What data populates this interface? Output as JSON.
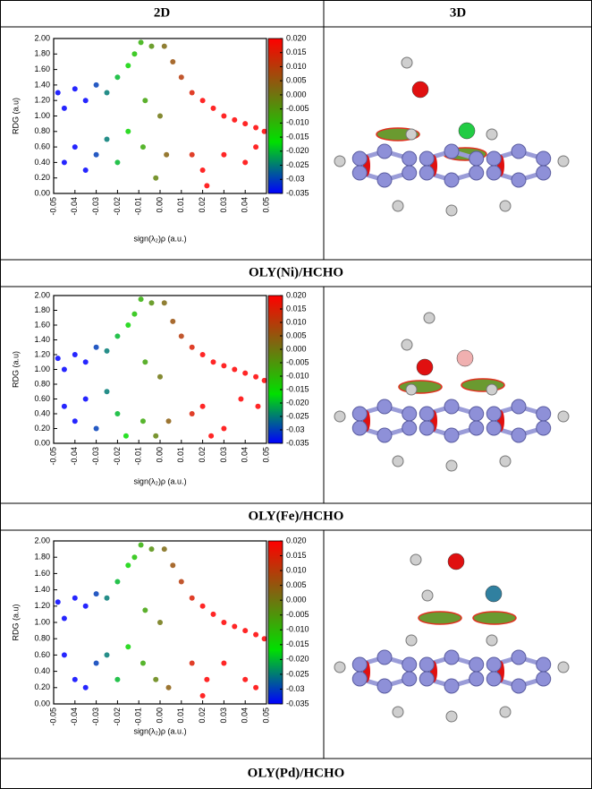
{
  "table": {
    "headers": [
      "2D",
      "3D"
    ],
    "captions": [
      "OLY(Ni)/HCHO",
      "OLY(Fe)/HCHO",
      "OLY(Pd)/HCHO"
    ]
  },
  "chart_data": [
    {
      "type": "scatter",
      "xlabel": "sign(λ₂)ρ (a.u.)",
      "ylabel": "RDG (a.u)",
      "xlim": [
        -0.05,
        0.05
      ],
      "ylim": [
        0,
        2
      ],
      "xticks": [
        -0.05,
        -0.04,
        -0.03,
        -0.02,
        -0.01,
        {
          "value": 0,
          "label": "0.00"
        },
        0.01,
        0.02,
        0.03,
        0.04,
        0.05
      ],
      "yticks": [
        {
          "value": 0,
          "label": "0.00"
        },
        {
          "value": 0.2,
          "label": "0.20"
        },
        {
          "value": 0.4,
          "label": "0.40"
        },
        {
          "value": 0.6,
          "label": "0.60"
        },
        {
          "value": 0.8,
          "label": "0.80"
        },
        {
          "value": 1,
          "label": "1.00"
        },
        {
          "value": 1.2,
          "label": "1.20"
        },
        {
          "value": 1.4,
          "label": "1.40"
        },
        {
          "value": 1.6,
          "label": "1.60"
        },
        {
          "value": 1.8,
          "label": "1.80"
        },
        {
          "value": 2,
          "label": "2.00"
        }
      ],
      "colorbar": {
        "lim": [
          -0.035,
          0.02
        ],
        "colors": [
          "#0000ff",
          "#00e000",
          "#7a6a10",
          "#ff0000"
        ],
        "ticks": [
          -0.035,
          -0.03,
          {
            "value": -0.025,
            "label": "-0.025"
          },
          {
            "value": -0.02,
            "label": "-0.020"
          },
          -0.015,
          {
            "value": -0.01,
            "label": "-0.010"
          },
          -0.005,
          {
            "value": 0,
            "label": "0.000"
          },
          0.005,
          {
            "value": 0.01,
            "label": "0.010"
          },
          0.015,
          {
            "value": 0.02,
            "label": "0.020"
          }
        ]
      },
      "series": [
        {
          "x": [
            -0.048,
            -0.045,
            -0.04,
            -0.035,
            -0.03,
            -0.025,
            -0.02,
            -0.015,
            -0.012,
            -0.009,
            -0.008,
            -0.007,
            -0.004,
            -0.002,
            0.0,
            0.002,
            0.003,
            0.006,
            0.01,
            0.015,
            0.02,
            0.025,
            0.03,
            0.035,
            0.04,
            0.045,
            0.049,
            -0.045,
            -0.04,
            -0.035,
            -0.03,
            -0.025,
            -0.02,
            -0.015,
            0.015,
            0.02,
            0.022,
            0.03,
            0.04,
            0.045
          ],
          "y": [
            1.3,
            1.1,
            1.35,
            1.2,
            1.4,
            1.3,
            1.5,
            1.65,
            1.8,
            1.95,
            0.6,
            1.2,
            1.9,
            0.2,
            1.0,
            1.9,
            0.5,
            1.7,
            1.5,
            1.3,
            1.2,
            1.1,
            1.0,
            0.95,
            0.9,
            0.85,
            0.8,
            0.4,
            0.6,
            0.3,
            0.5,
            0.7,
            0.4,
            0.8,
            0.5,
            0.3,
            0.1,
            0.5,
            0.4,
            0.6
          ]
        }
      ]
    },
    {
      "type": "scatter",
      "xlabel": "sign(λ₂)ρ (a.u.)",
      "ylabel": "RDG (a.u)",
      "xlim": [
        -0.05,
        0.05
      ],
      "ylim": [
        0,
        2
      ],
      "xticks": [
        -0.05,
        -0.04,
        -0.03,
        -0.02,
        -0.01,
        {
          "value": 0,
          "label": "0.00"
        },
        0.01,
        0.02,
        0.03,
        0.04,
        0.05
      ],
      "yticks": [
        {
          "value": 0,
          "label": "0.00"
        },
        {
          "value": 0.2,
          "label": "0.20"
        },
        {
          "value": 0.4,
          "label": "0.40"
        },
        {
          "value": 0.6,
          "label": "0.60"
        },
        {
          "value": 0.8,
          "label": "0.80"
        },
        {
          "value": 1,
          "label": "1.00"
        },
        {
          "value": 1.2,
          "label": "1.20"
        },
        {
          "value": 1.4,
          "label": "1.40"
        },
        {
          "value": 1.6,
          "label": "1.60"
        },
        {
          "value": 1.8,
          "label": "1.80"
        },
        {
          "value": 2,
          "label": "2.00"
        }
      ],
      "colorbar": {
        "lim": [
          -0.035,
          0.02
        ],
        "colors": [
          "#0000ff",
          "#00e000",
          "#7a6a10",
          "#ff0000"
        ],
        "ticks": [
          -0.035,
          -0.03,
          {
            "value": -0.025,
            "label": "-0.025"
          },
          {
            "value": -0.02,
            "label": "-0.020"
          },
          -0.015,
          {
            "value": -0.01,
            "label": "-0.010"
          },
          -0.005,
          {
            "value": 0,
            "label": "0.000"
          },
          0.005,
          {
            "value": 0.01,
            "label": "0.010"
          },
          0.015,
          {
            "value": 0.02,
            "label": "0.020"
          }
        ]
      },
      "series": [
        {
          "x": [
            -0.048,
            -0.045,
            -0.04,
            -0.035,
            -0.03,
            -0.025,
            -0.02,
            -0.015,
            -0.012,
            -0.009,
            -0.008,
            -0.007,
            -0.004,
            -0.002,
            0.0,
            0.002,
            0.004,
            0.006,
            0.01,
            0.015,
            0.02,
            0.025,
            0.03,
            0.035,
            0.04,
            0.045,
            0.049,
            -0.045,
            -0.04,
            -0.035,
            -0.03,
            -0.025,
            -0.02,
            -0.016,
            0.015,
            0.02,
            0.024,
            0.03,
            0.038,
            0.046
          ],
          "y": [
            1.15,
            1.0,
            1.2,
            1.1,
            1.3,
            1.25,
            1.45,
            1.6,
            1.75,
            1.95,
            0.3,
            1.1,
            1.9,
            0.1,
            0.9,
            1.9,
            0.3,
            1.65,
            1.45,
            1.3,
            1.2,
            1.1,
            1.05,
            1.0,
            0.95,
            0.9,
            0.85,
            0.5,
            0.3,
            0.6,
            0.2,
            0.7,
            0.4,
            0.1,
            0.4,
            0.5,
            0.1,
            0.2,
            0.6,
            0.5
          ]
        }
      ]
    },
    {
      "type": "scatter",
      "xlabel": "sign(λ₂)ρ (a.u.)",
      "ylabel": "RDG (a.u)",
      "xlim": [
        -0.05,
        0.05
      ],
      "ylim": [
        0,
        2
      ],
      "xticks": [
        -0.05,
        -0.04,
        -0.03,
        -0.02,
        -0.01,
        {
          "value": 0,
          "label": "0.00"
        },
        0.01,
        0.02,
        0.03,
        0.04,
        0.05
      ],
      "yticks": [
        {
          "value": 0,
          "label": "0.00"
        },
        {
          "value": 0.2,
          "label": "0.20"
        },
        {
          "value": 0.4,
          "label": "0.40"
        },
        {
          "value": 0.6,
          "label": "0.60"
        },
        {
          "value": 0.8,
          "label": "0.80"
        },
        {
          "value": 1,
          "label": "1.00"
        },
        {
          "value": 1.2,
          "label": "1.20"
        },
        {
          "value": 1.4,
          "label": "1.40"
        },
        {
          "value": 1.6,
          "label": "1.60"
        },
        {
          "value": 1.8,
          "label": "1.80"
        },
        {
          "value": 2,
          "label": "2.00"
        }
      ],
      "colorbar": {
        "lim": [
          -0.035,
          0.02
        ],
        "colors": [
          "#0000ff",
          "#00e000",
          "#7a6a10",
          "#ff0000"
        ],
        "ticks": [
          -0.035,
          -0.03,
          {
            "value": -0.025,
            "label": "-0.025"
          },
          {
            "value": -0.02,
            "label": "-0.020"
          },
          -0.015,
          {
            "value": -0.01,
            "label": "-0.010"
          },
          -0.005,
          {
            "value": 0,
            "label": "0.000"
          },
          0.005,
          {
            "value": 0.01,
            "label": "0.010"
          },
          0.015,
          {
            "value": 0.02,
            "label": "0.020"
          }
        ]
      },
      "series": [
        {
          "x": [
            -0.048,
            -0.045,
            -0.04,
            -0.035,
            -0.03,
            -0.025,
            -0.02,
            -0.015,
            -0.012,
            -0.009,
            -0.008,
            -0.007,
            -0.004,
            -0.002,
            0.0,
            0.002,
            0.004,
            0.006,
            0.01,
            0.015,
            0.02,
            0.025,
            0.03,
            0.035,
            0.04,
            0.045,
            0.049,
            -0.045,
            -0.04,
            -0.035,
            -0.03,
            -0.025,
            -0.02,
            -0.015,
            0.015,
            0.02,
            0.022,
            0.03,
            0.04,
            0.045
          ],
          "y": [
            1.25,
            1.05,
            1.3,
            1.2,
            1.35,
            1.3,
            1.5,
            1.7,
            1.8,
            1.95,
            0.5,
            1.15,
            1.9,
            0.3,
            1.0,
            1.9,
            0.2,
            1.7,
            1.5,
            1.3,
            1.2,
            1.1,
            1.0,
            0.95,
            0.9,
            0.85,
            0.8,
            0.6,
            0.3,
            0.2,
            0.5,
            0.6,
            0.3,
            0.7,
            0.5,
            0.1,
            0.3,
            0.5,
            0.3,
            0.2
          ]
        }
      ]
    }
  ]
}
